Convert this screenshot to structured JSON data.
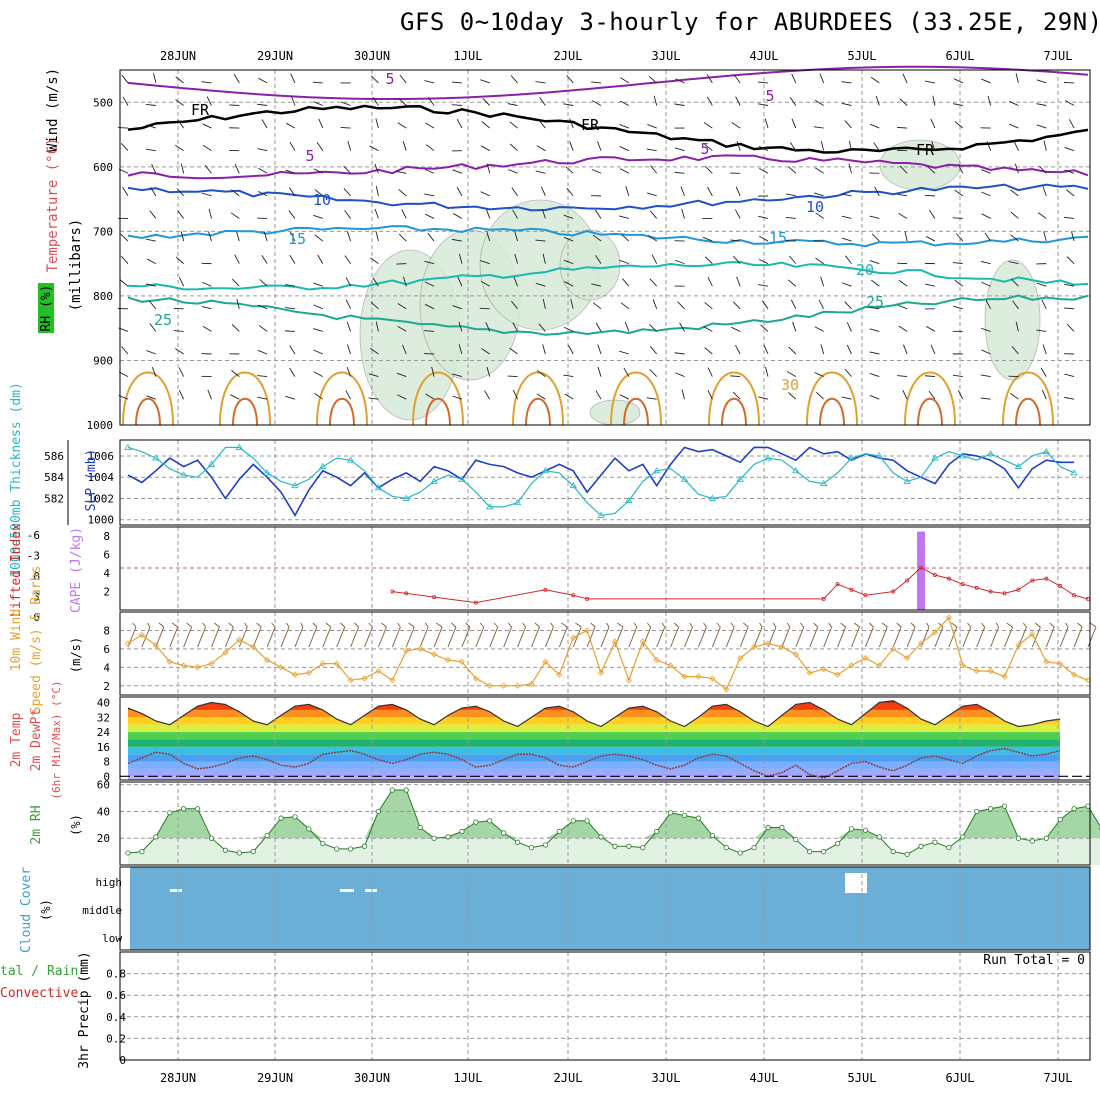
{
  "title": "GFS 0~10day 3-hourly for ABURDEES (33.25E, 29N)",
  "dates": [
    "28JUN",
    "29JUN",
    "30JUN",
    "1JUL",
    "2JUL",
    "3JUL",
    "4JUL",
    "5JUL",
    "6JUL",
    "7JUL"
  ],
  "colors": {
    "temp_line": "#d06a2c",
    "rh_fill": "#d8ead8",
    "thickness": "#1f3fc8",
    "slp": "#27b8c4",
    "lifted": "#d02828",
    "cape": "#c075f5",
    "wind10m": "#e8a030",
    "rh2m": "#3aa03a",
    "cloud": "#6baed6",
    "dewpt": "#8b3a3a"
  },
  "chart_data": [
    {
      "panel": "cross-section",
      "type": "line",
      "ylabel_wind": "Wind (m/s)",
      "ylabel_temp": "Temperature (°C)",
      "ylabel_rh": "RH (%)",
      "ylabel_p": "(millibars)",
      "y_ticks": [
        500,
        600,
        700,
        800,
        900,
        1000
      ],
      "ylim": [
        1000,
        450
      ],
      "contour_labels": [
        "FR",
        "FR",
        "FR",
        "5",
        "5",
        "5",
        "10",
        "10",
        "15",
        "15",
        "20",
        "25",
        "25",
        "30",
        "30",
        "10",
        "30"
      ],
      "isotherms": [
        {
          "name": "FR",
          "p_range": [
            505,
            580
          ]
        },
        {
          "name": "5",
          "p_range": [
            585,
            615
          ]
        },
        {
          "name": "10",
          "p_range": [
            630,
            665
          ]
        },
        {
          "name": "15",
          "p_range": [
            695,
            720
          ]
        },
        {
          "name": "20",
          "p_range": [
            750,
            790
          ]
        },
        {
          "name": "25",
          "p_range": [
            800,
            860
          ]
        },
        {
          "name": "30",
          "p_range": [
            840,
            1000
          ]
        }
      ]
    },
    {
      "panel": "thickness-slp",
      "type": "line",
      "ylabel_left": "1000-500mb Thickness (dm)",
      "ylabel_right": "SLP (mb)",
      "left_ticks": [
        "586",
        "584",
        "582"
      ],
      "right_ticks": [
        "1006",
        "1004",
        "1002",
        "1000"
      ],
      "ylim_slp": [
        999.5,
        1007.5
      ],
      "series": [
        {
          "name": "Thickness",
          "values": [
            1004.2,
            1003.5,
            1004.6,
            1005.8,
            1005.0,
            1005.6,
            1004.0,
            1002.0,
            1003.8,
            1005.2,
            1004.0,
            1002.6,
            1000.4,
            1002.8,
            1004.6,
            1004.0,
            1003.2,
            1004.4,
            1003.0,
            1003.8,
            1004.4,
            1003.6,
            1005.0,
            1004.6,
            1003.8,
            1005.6,
            1005.2,
            1005.0,
            1004.4,
            1004.0,
            1004.6,
            1005.2,
            1004.6,
            1002.6,
            1004.2,
            1005.8,
            1004.6,
            1005.2,
            1003.2,
            1005.2,
            1006.8,
            1006.4,
            1006.6,
            1006.0,
            1005.4,
            1006.8,
            1006.8,
            1006.2,
            1005.6,
            1006.8,
            1006.2,
            1006.4,
            1005.6,
            1006.2,
            1005.8,
            1005.6,
            1004.6,
            1004.0,
            1003.4,
            1005.2,
            1006.2,
            1006.0,
            1005.6,
            1004.8,
            1003.0,
            1004.8,
            1005.6,
            1005.4,
            1005.4
          ]
        },
        {
          "name": "SLP",
          "values": [
            1006.8,
            1006.4,
            1005.8,
            1004.8,
            1004.2,
            1004.0,
            1005.2,
            1006.8,
            1006.8,
            1005.8,
            1004.4,
            1003.6,
            1003.2,
            1003.8,
            1005.0,
            1005.8,
            1005.6,
            1004.6,
            1003.0,
            1002.2,
            1002.0,
            1002.6,
            1003.6,
            1004.2,
            1003.8,
            1002.6,
            1001.2,
            1001.2,
            1001.6,
            1003.4,
            1004.6,
            1004.4,
            1003.2,
            1001.6,
            1000.4,
            1000.6,
            1001.8,
            1003.6,
            1004.6,
            1004.8,
            1003.8,
            1002.4,
            1002.0,
            1002.2,
            1003.8,
            1005.2,
            1005.8,
            1005.6,
            1004.6,
            1003.6,
            1003.4,
            1004.4,
            1005.8,
            1006.2,
            1006.0,
            1004.4,
            1003.6,
            1004.0,
            1005.8,
            1006.4,
            1006.0,
            1005.6,
            1006.2,
            1005.6,
            1005.0,
            1006.0,
            1006.4,
            1005.0,
            1004.4
          ]
        }
      ]
    },
    {
      "panel": "instability",
      "type": "line",
      "ylabel_left": "Lifted Index",
      "ylabel_right": "CAPE (J/kg)",
      "left_ticks": [
        "-6",
        "-3",
        "0",
        "3",
        "6"
      ],
      "right_ticks": [
        "8",
        "6",
        "4",
        "2"
      ],
      "series": [
        {
          "name": "CAPE",
          "values": [
            {
              "x": 57.0,
              "y": 8.5
            }
          ]
        },
        {
          "name": "Lifted Index",
          "values": [
            [
              19,
              2
            ],
            [
              20,
              1.8
            ],
            [
              22,
              1.4
            ],
            [
              25,
              0.8
            ],
            [
              30,
              2.2
            ],
            [
              32,
              1.6
            ],
            [
              33,
              1.2
            ],
            [
              50,
              1.2
            ],
            [
              51,
              2.8
            ],
            [
              52,
              2.2
            ],
            [
              53,
              1.6
            ],
            [
              55,
              2.0
            ],
            [
              56,
              3.2
            ],
            [
              57,
              4.6
            ],
            [
              58,
              3.8
            ],
            [
              59,
              3.4
            ],
            [
              60,
              2.8
            ],
            [
              61,
              2.4
            ],
            [
              62,
              2.0
            ],
            [
              63,
              1.8
            ],
            [
              64,
              2.2
            ],
            [
              65,
              3.2
            ],
            [
              66,
              3.4
            ],
            [
              67,
              2.6
            ],
            [
              68,
              1.6
            ],
            [
              69,
              1.2
            ]
          ]
        }
      ]
    },
    {
      "panel": "wind10m",
      "type": "line",
      "ylabel": "10m Wind Speed (m/s) & Barbs",
      "ticks": [
        "8",
        "6",
        "4",
        "2"
      ],
      "ylim": [
        1,
        9
      ],
      "values": [
        6.6,
        7.5,
        6.4,
        4.6,
        4.2,
        4.0,
        4.4,
        5.6,
        7.0,
        6.2,
        4.8,
        4.0,
        3.2,
        3.4,
        4.4,
        4.4,
        2.6,
        2.8,
        3.6,
        2.6,
        5.8,
        6.0,
        5.4,
        4.8,
        4.6,
        2.8,
        2.0,
        2.0,
        2.0,
        2.2,
        4.6,
        3.2,
        7.2,
        8.0,
        3.4,
        6.8,
        2.6,
        6.8,
        4.8,
        4.2,
        3.0,
        3.0,
        2.8,
        1.6,
        5.0,
        6.2,
        6.6,
        6.2,
        5.4,
        3.4,
        3.8,
        3.2,
        4.2,
        5.0,
        4.2,
        6.0,
        5.0,
        6.6,
        7.8,
        9.4,
        4.2,
        3.6,
        3.6,
        3.0,
        6.4,
        7.6,
        4.6,
        4.4,
        3.2,
        2.6
      ]
    },
    {
      "panel": "temperature",
      "type": "area",
      "ylabel": "2m Temp 2m DewPt (6hr Min/Max) (°C)",
      "ticks": [
        "40",
        "32",
        "24",
        "16",
        "8",
        "0"
      ],
      "ylim": [
        -2,
        43
      ],
      "series": [
        {
          "name": "2m Temp",
          "values": [
            37,
            34,
            30,
            28,
            33,
            38,
            40,
            39,
            35,
            30,
            28,
            33,
            38,
            39,
            36,
            31,
            28,
            33,
            38,
            39,
            36,
            31,
            28,
            33,
            37,
            38,
            35,
            30,
            27,
            32,
            37,
            38,
            35,
            30,
            27,
            32,
            37,
            38,
            35,
            30,
            27,
            32,
            38,
            39,
            35,
            30,
            27,
            33,
            39,
            40,
            36,
            31,
            28,
            34,
            40,
            41,
            37,
            31,
            28,
            33,
            38,
            39,
            35,
            30,
            27,
            28,
            30,
            31
          ]
        },
        {
          "name": "2m DewPt",
          "values": [
            7,
            10,
            13,
            12,
            7,
            4,
            5,
            7,
            10,
            11,
            9,
            6,
            5,
            7,
            12,
            13,
            14,
            12,
            9,
            7,
            9,
            12,
            13,
            12,
            9,
            5,
            6,
            9,
            12,
            12,
            10,
            6,
            5,
            8,
            11,
            12,
            11,
            9,
            6,
            4,
            6,
            10,
            12,
            11,
            7,
            3,
            0,
            2,
            6,
            1,
            -1,
            3,
            7,
            8,
            5,
            3,
            6,
            10,
            11,
            9,
            7,
            11,
            14,
            15,
            13,
            11,
            12,
            14
          ]
        }
      ]
    },
    {
      "panel": "rh2m",
      "type": "area",
      "ylabel": "2m RH (%)",
      "ticks": [
        "60",
        "40",
        "20"
      ],
      "ylim": [
        0,
        60
      ],
      "values": [
        9,
        10,
        21,
        39,
        42,
        42,
        20,
        11,
        9,
        10,
        22,
        35,
        36,
        27,
        16,
        12,
        12,
        14,
        40,
        56,
        56,
        28,
        20,
        21,
        25,
        32,
        33,
        24,
        17,
        13,
        15,
        25,
        33,
        33,
        21,
        14,
        14,
        13,
        25,
        39,
        37,
        35,
        22,
        13,
        9,
        13,
        28,
        28,
        19,
        10,
        10,
        16,
        27,
        26,
        21,
        10,
        8,
        14,
        17,
        13,
        21,
        40,
        42,
        44,
        20,
        18,
        20,
        34,
        42,
        44,
        27
      ]
    },
    {
      "panel": "cloud",
      "type": "heatmap",
      "ylabel": "Cloud Cover (%)",
      "levels": [
        "high",
        "middle",
        "low"
      ],
      "cover_pct": 0
    },
    {
      "panel": "precip",
      "type": "bar",
      "ylabel": "3hr Precip (mm)",
      "legend": [
        "Total / Rain",
        "Convective"
      ],
      "ticks": [
        "0.8",
        "0.6",
        "0.4",
        "0.2",
        "0"
      ],
      "ylim": [
        0,
        1
      ],
      "run_total": "Run Total = 0",
      "values": []
    }
  ],
  "labels": {
    "wind": "Wind (m/s)",
    "temperature": "Temperature (°C)",
    "rh": "RH (%)",
    "millibars": "(millibars)",
    "thickness": "1000-500mb Thickness (dm)",
    "slp": "SLP (mb)",
    "lifted": "Lifted Index",
    "cape": "CAPE (J/kg)",
    "wind10m": "10m Wind",
    "speed_barbs": "Speed (m/s) & Barbs",
    "temp2m": "2m Temp",
    "dewpt": "2m DewPt",
    "minmax": "(6hr Min/Max) (°C)",
    "rh2m": "2m RH",
    "pct": "(%)",
    "cloud": "Cloud Cover",
    "precip": "3hr Precip (mm)",
    "total_rain": "tal / Rain",
    "convective": "Convective",
    "run_total": "Run Total = 0"
  }
}
